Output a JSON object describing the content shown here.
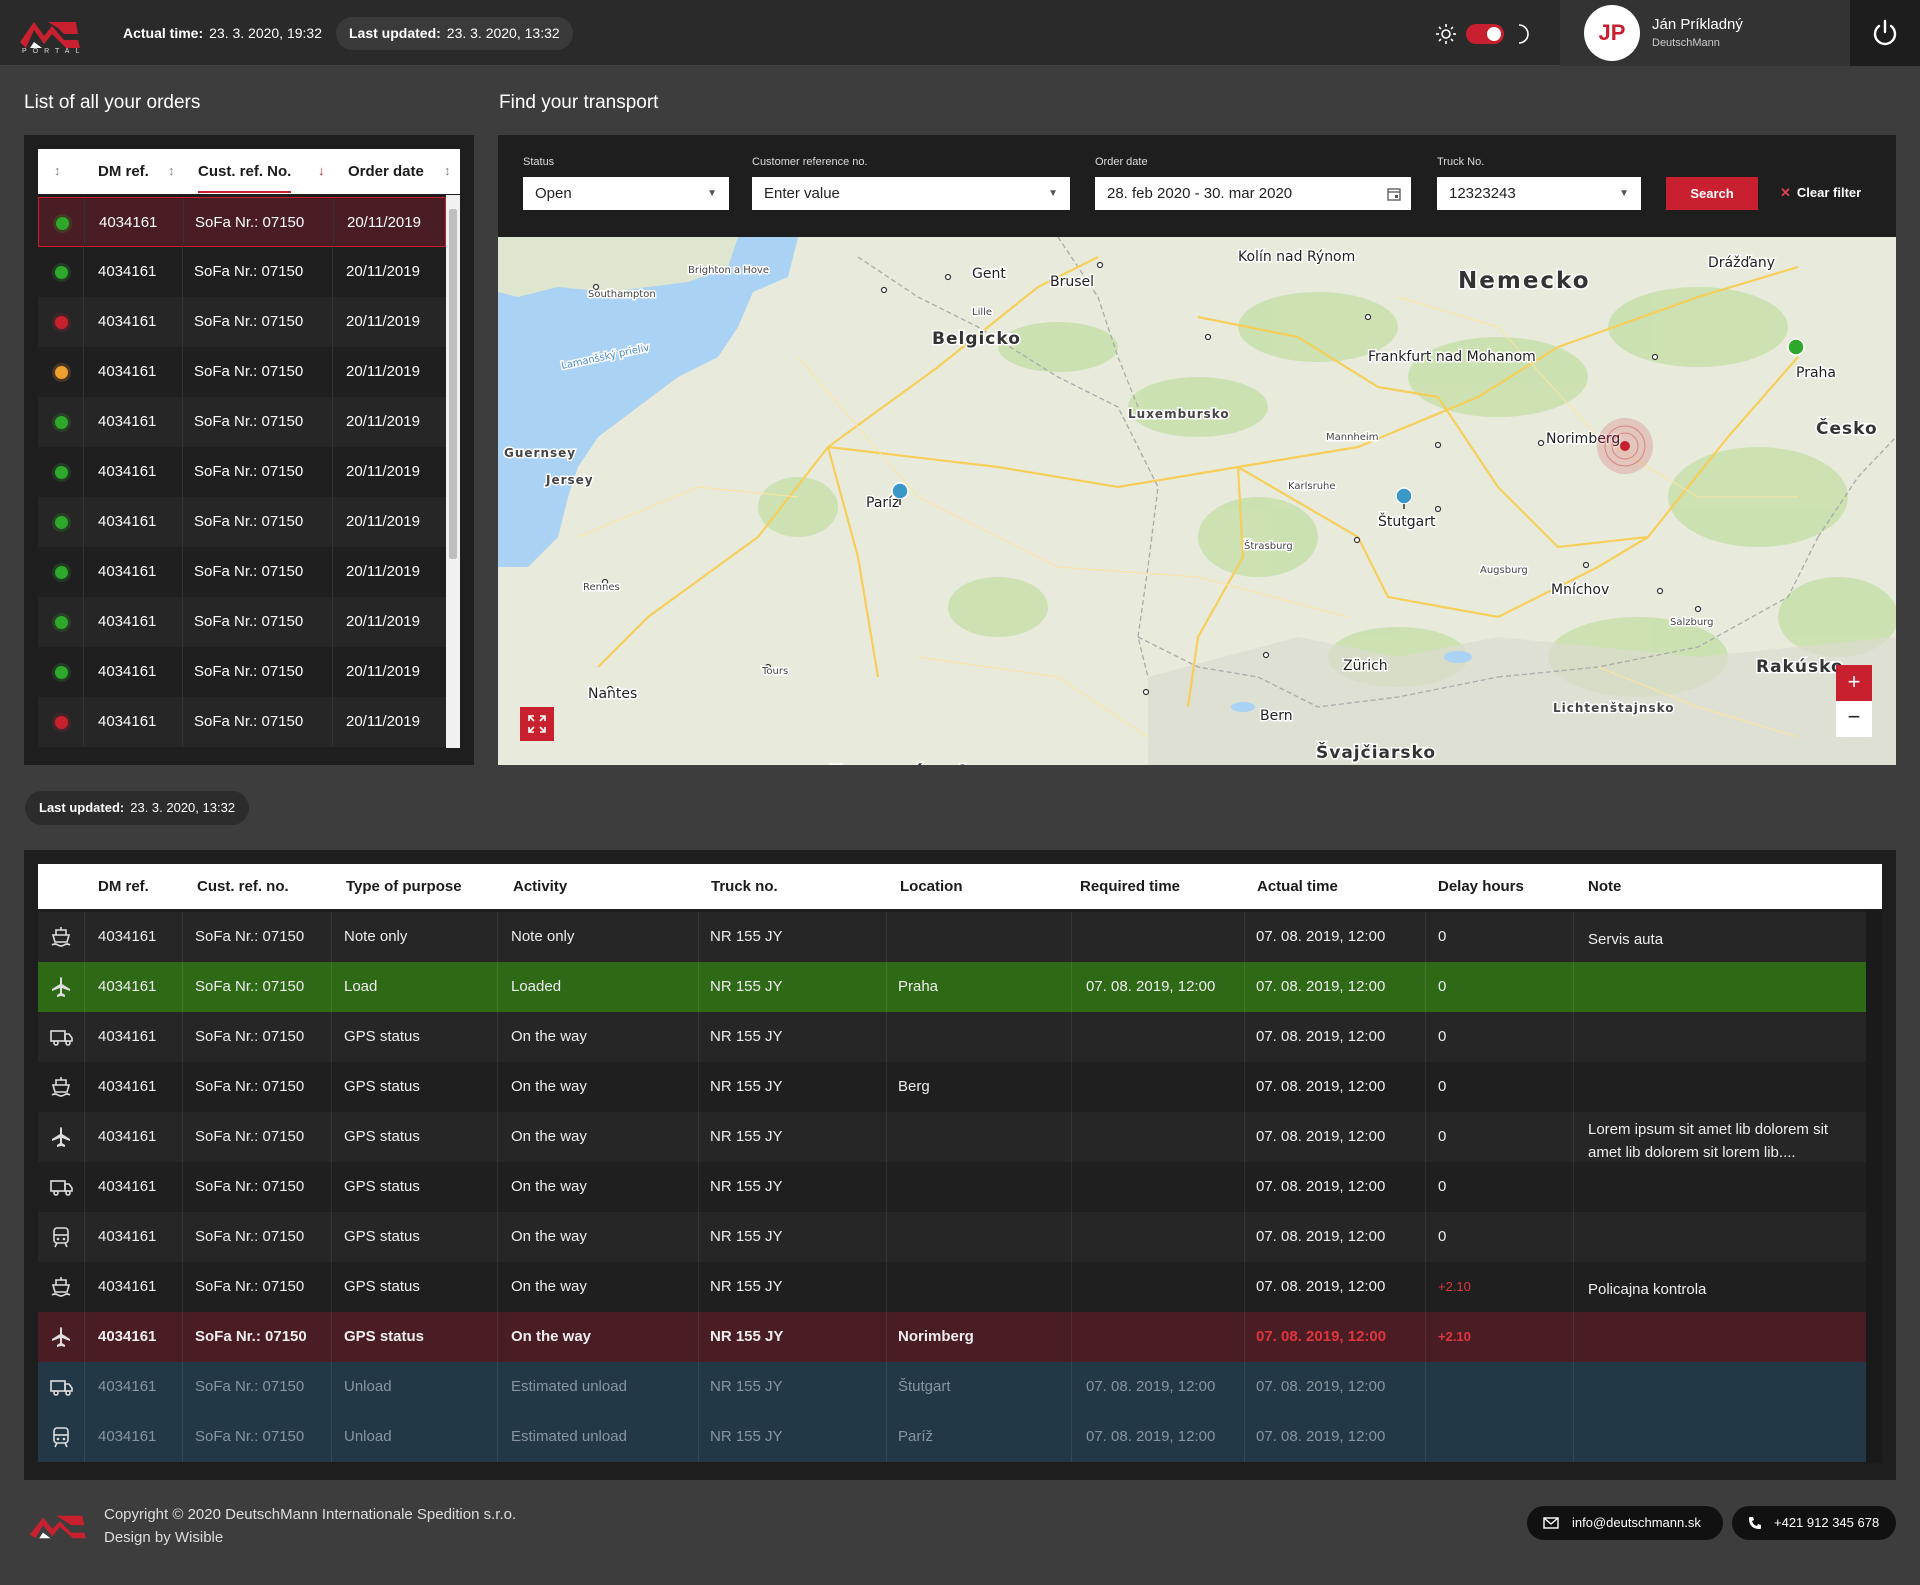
{
  "header": {
    "logo_text": "PORTAL",
    "actual_time_label": "Actual time:",
    "actual_time_value": "23. 3. 2020, 19:32",
    "last_updated_label": "Last updated:",
    "last_updated_value": "23. 3. 2020, 13:32",
    "user_initials": "JP",
    "user_name": "Ján Príkladný",
    "user_company": "DeutschMann",
    "theme_toggle_on": true
  },
  "orders": {
    "title": "List of all your orders",
    "columns": [
      "DM ref.",
      "Cust. ref. No.",
      "Order date"
    ],
    "rows": [
      {
        "status": "green",
        "ref": "4034161",
        "cust": "SoFa Nr.: 07150",
        "date": "20/11/2019"
      },
      {
        "status": "green",
        "ref": "4034161",
        "cust": "SoFa Nr.: 07150",
        "date": "20/11/2019"
      },
      {
        "status": "red",
        "ref": "4034161",
        "cust": "SoFa Nr.: 07150",
        "date": "20/11/2019"
      },
      {
        "status": "orange",
        "ref": "4034161",
        "cust": "SoFa Nr.: 07150",
        "date": "20/11/2019"
      },
      {
        "status": "green",
        "ref": "4034161",
        "cust": "SoFa Nr.: 07150",
        "date": "20/11/2019"
      },
      {
        "status": "green",
        "ref": "4034161",
        "cust": "SoFa Nr.: 07150",
        "date": "20/11/2019"
      },
      {
        "status": "green",
        "ref": "4034161",
        "cust": "SoFa Nr.: 07150",
        "date": "20/11/2019"
      },
      {
        "status": "green",
        "ref": "4034161",
        "cust": "SoFa Nr.: 07150",
        "date": "20/11/2019"
      },
      {
        "status": "green",
        "ref": "4034161",
        "cust": "SoFa Nr.: 07150",
        "date": "20/11/2019"
      },
      {
        "status": "green",
        "ref": "4034161",
        "cust": "SoFa Nr.: 07150",
        "date": "20/11/2019"
      },
      {
        "status": "red",
        "ref": "4034161",
        "cust": "SoFa Nr.: 07150",
        "date": "20/11/2019"
      }
    ]
  },
  "transport": {
    "title": "Find your transport",
    "status_label": "Status",
    "status_value": "Open",
    "custref_label": "Customer reference no.",
    "custref_placeholder": "Enter value",
    "orderdate_label": "Order date",
    "orderdate_value": "28. feb 2020 - 30. mar 2020",
    "truck_label": "Truck No.",
    "truck_value": "12323243",
    "search_label": "Search",
    "clear_label": "Clear filter"
  },
  "map": {
    "labels": [
      {
        "text": "Nemecko",
        "size": "big"
      },
      {
        "text": "Belgicko",
        "size": "mid"
      },
      {
        "text": "Luxembursko",
        "size": "small"
      },
      {
        "text": "Francúzsko",
        "size": "big"
      },
      {
        "text": "Švajčiarsko",
        "size": "mid"
      },
      {
        "text": "Česko",
        "size": "mid"
      },
      {
        "text": "Rakúsko",
        "size": "mid"
      },
      {
        "text": "Lichtenštajnsko",
        "size": "small"
      },
      {
        "text": "Guernsey",
        "size": "small"
      },
      {
        "text": "Jersey",
        "size": "small"
      },
      {
        "text": "Brusel",
        "size": "city"
      },
      {
        "text": "Gent",
        "size": "city"
      },
      {
        "text": "Lille",
        "size": "tiny"
      },
      {
        "text": "Kolín nad Rýnom",
        "size": "city"
      },
      {
        "text": "Frankfurt nad Mohanom",
        "size": "city"
      },
      {
        "text": "Drážďany",
        "size": "city"
      },
      {
        "text": "Praha",
        "size": "city"
      },
      {
        "text": "Norimberg",
        "size": "city"
      },
      {
        "text": "Mannheim",
        "size": "tiny"
      },
      {
        "text": "Karlsruhe",
        "size": "tiny"
      },
      {
        "text": "Štutgart",
        "size": "city"
      },
      {
        "text": "Štrasburg",
        "size": "tiny"
      },
      {
        "text": "Augsburg",
        "size": "tiny"
      },
      {
        "text": "Mníchov",
        "size": "city"
      },
      {
        "text": "Salzburg",
        "size": "tiny"
      },
      {
        "text": "Zürich",
        "size": "city"
      },
      {
        "text": "Bern",
        "size": "city"
      },
      {
        "text": "Paríž",
        "size": "city"
      },
      {
        "text": "Rennes",
        "size": "tiny"
      },
      {
        "text": "Tours",
        "size": "tiny"
      },
      {
        "text": "Nantes",
        "size": "city"
      },
      {
        "text": "Southampton",
        "size": "tiny"
      },
      {
        "text": "Brighton a Hove",
        "size": "tiny"
      },
      {
        "text": "Lamanšský prieliv",
        "size": "sea"
      }
    ],
    "zoom_in": "+",
    "zoom_out": "−"
  },
  "last_updated": {
    "label": "Last updated:",
    "value": "23. 3. 2020, 13:32"
  },
  "activities": {
    "columns": [
      "DM ref.",
      "Cust. ref. no.",
      "Type of purpose",
      "Activity",
      "Truck no.",
      "Location",
      "Required time",
      "Actual time",
      "Delay hours",
      "Note"
    ],
    "rows": [
      {
        "icon": "ship-icon",
        "ref": "4034161",
        "cust": "SoFa Nr.: 07150",
        "type": "Note only",
        "activity": "Note only",
        "truck": "NR 155 JY",
        "location": "",
        "required": "",
        "actual": "07. 08. 2019, 12:00",
        "delay": "0",
        "note": "Servis auta",
        "style": "normal"
      },
      {
        "icon": "plane-icon",
        "ref": "4034161",
        "cust": "SoFa Nr.: 07150",
        "type": "Load",
        "activity": "Loaded",
        "truck": "NR 155 JY",
        "location": "Praha",
        "required": "07. 08. 2019, 12:00",
        "actual": "07. 08. 2019, 12:00",
        "delay": "0",
        "note": "",
        "style": "green"
      },
      {
        "icon": "truck-icon",
        "ref": "4034161",
        "cust": "SoFa Nr.: 07150",
        "type": "GPS status",
        "activity": "On the way",
        "truck": "NR 155 JY",
        "location": "",
        "required": "",
        "actual": "07. 08. 2019, 12:00",
        "delay": "0",
        "note": "",
        "style": "normal"
      },
      {
        "icon": "ship-icon",
        "ref": "4034161",
        "cust": "SoFa Nr.: 07150",
        "type": "GPS status",
        "activity": "On the way",
        "truck": "NR 155 JY",
        "location": "Berg",
        "required": "",
        "actual": "07. 08. 2019, 12:00",
        "delay": "0",
        "note": "",
        "style": "normal"
      },
      {
        "icon": "plane-icon",
        "ref": "4034161",
        "cust": "SoFa Nr.: 07150",
        "type": "GPS status",
        "activity": "On the way",
        "truck": "NR 155 JY",
        "location": "",
        "required": "",
        "actual": "07. 08. 2019, 12:00",
        "delay": "0",
        "note": "Lorem ipsum sit amet lib dolorem sit amet lib dolorem sit lorem lib....",
        "style": "normal"
      },
      {
        "icon": "truck-icon",
        "ref": "4034161",
        "cust": "SoFa Nr.: 07150",
        "type": "GPS status",
        "activity": "On the way",
        "truck": "NR 155 JY",
        "location": "",
        "required": "",
        "actual": "07. 08. 2019, 12:00",
        "delay": "0",
        "note": "",
        "style": "normal"
      },
      {
        "icon": "train-icon",
        "ref": "4034161",
        "cust": "SoFa Nr.: 07150",
        "type": "GPS status",
        "activity": "On the way",
        "truck": "NR 155 JY",
        "location": "",
        "required": "",
        "actual": "07. 08. 2019, 12:00",
        "delay": "0",
        "note": "",
        "style": "normal"
      },
      {
        "icon": "ship-icon",
        "ref": "4034161",
        "cust": "SoFa Nr.: 07150",
        "type": "GPS status",
        "activity": "On the way",
        "truck": "NR 155 JY",
        "location": "",
        "required": "",
        "actual": "07. 08. 2019, 12:00",
        "delay": "+2.10",
        "note": "Policajna kontrola",
        "style": "normal"
      },
      {
        "icon": "plane-icon",
        "ref": "4034161",
        "cust": "SoFa Nr.: 07150",
        "type": "GPS status",
        "activity": "On the way",
        "truck": "NR 155 JY",
        "location": "Norimberg",
        "required": "",
        "actual": "07. 08. 2019, 12:00",
        "delay": "+2.10",
        "note": "",
        "style": "red"
      },
      {
        "icon": "truck-icon",
        "ref": "4034161",
        "cust": "SoFa Nr.: 07150",
        "type": "Unload",
        "activity": "Estimated unload",
        "truck": "NR 155 JY",
        "location": "Štutgart",
        "required": "07. 08. 2019, 12:00",
        "actual": "07. 08. 2019, 12:00",
        "delay": "",
        "note": "",
        "style": "blue"
      },
      {
        "icon": "train-icon",
        "ref": "4034161",
        "cust": "SoFa Nr.: 07150",
        "type": "Unload",
        "activity": "Estimated unload",
        "truck": "NR 155 JY",
        "location": "Paríž",
        "required": "07. 08. 2019, 12:00",
        "actual": "07. 08. 2019, 12:00",
        "delay": "",
        "note": "",
        "style": "blue"
      }
    ]
  },
  "footer": {
    "copyright": "Copyright © 2020   DeutschMann Internationale Spedition s.r.o.",
    "design": "Design by Wisible",
    "email": "info@deutschmann.sk",
    "phone": "+421 912 345 678"
  },
  "colors": {
    "accent": "#c8202f",
    "green_row": "#2e6a15",
    "red_row": "#4a1d24",
    "blue_row": "#223847",
    "status_green": "#2ea82b",
    "status_red": "#c8202f",
    "status_orange": "#f0a030"
  }
}
